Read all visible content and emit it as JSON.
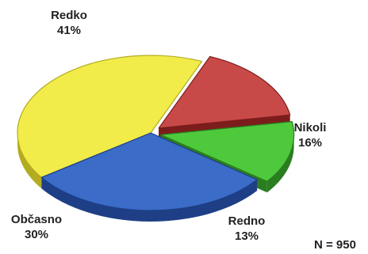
{
  "chart_data": {
    "type": "pie",
    "slices": [
      {
        "key": "redko",
        "label": "Redko",
        "value": 41,
        "value_text": "41%",
        "color": "#f2ec4a",
        "side_color": "#b3ac20"
      },
      {
        "key": "nikoli",
        "label": "Nikoli",
        "value": 16,
        "value_text": "16%",
        "color": "#c84a48",
        "side_color": "#7c1d1c"
      },
      {
        "key": "redno",
        "label": "Redno",
        "value": 13,
        "value_text": "13%",
        "color": "#4ec93c",
        "side_color": "#2a7d20"
      },
      {
        "key": "obcasno",
        "label": "Občasno",
        "value": 30,
        "value_text": "30%",
        "color": "#3a6cc8",
        "side_color": "#1e3f86"
      }
    ],
    "exploded": [
      "nikoli",
      "redno"
    ],
    "annotation": "N = 950",
    "style": "3d-tilted-pie"
  }
}
